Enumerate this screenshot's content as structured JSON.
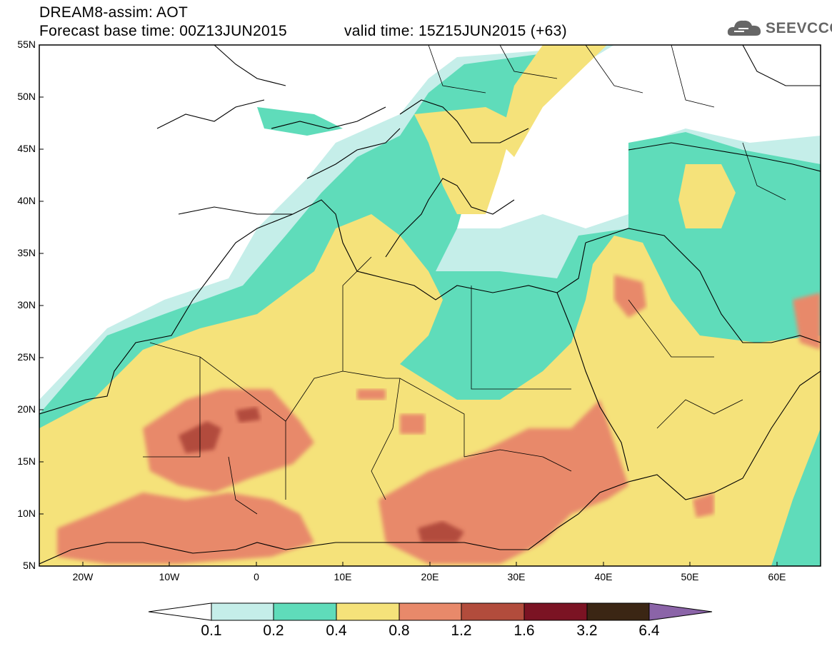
{
  "header": {
    "line1": "DREAM8-assim: AOT",
    "line2_left": "Forecast base time: 00Z13JUN2015",
    "line2_right": "valid time: 15Z15JUN2015 (+63)"
  },
  "logo": {
    "text": "SEEVCCC",
    "icon": "cloud-logo-icon"
  },
  "map": {
    "lat_labels": [
      "55N",
      "50N",
      "45N",
      "40N",
      "35N",
      "30N",
      "25N",
      "20N",
      "15N",
      "10N",
      "5N"
    ],
    "lon_labels": [
      "20W",
      "10W",
      "0",
      "10E",
      "20E",
      "30E",
      "40E",
      "50E",
      "60E"
    ]
  },
  "colorbar": {
    "labels": [
      "0.1",
      "0.2",
      "0.4",
      "0.8",
      "1.2",
      "1.6",
      "3.2",
      "6.4"
    ],
    "colors": [
      "#ffffff",
      "#c5eee9",
      "#5fdcba",
      "#f5e27a",
      "#e8896a",
      "#b24c3c",
      "#7b1323",
      "#3b2614",
      "#8b64a8"
    ]
  }
}
